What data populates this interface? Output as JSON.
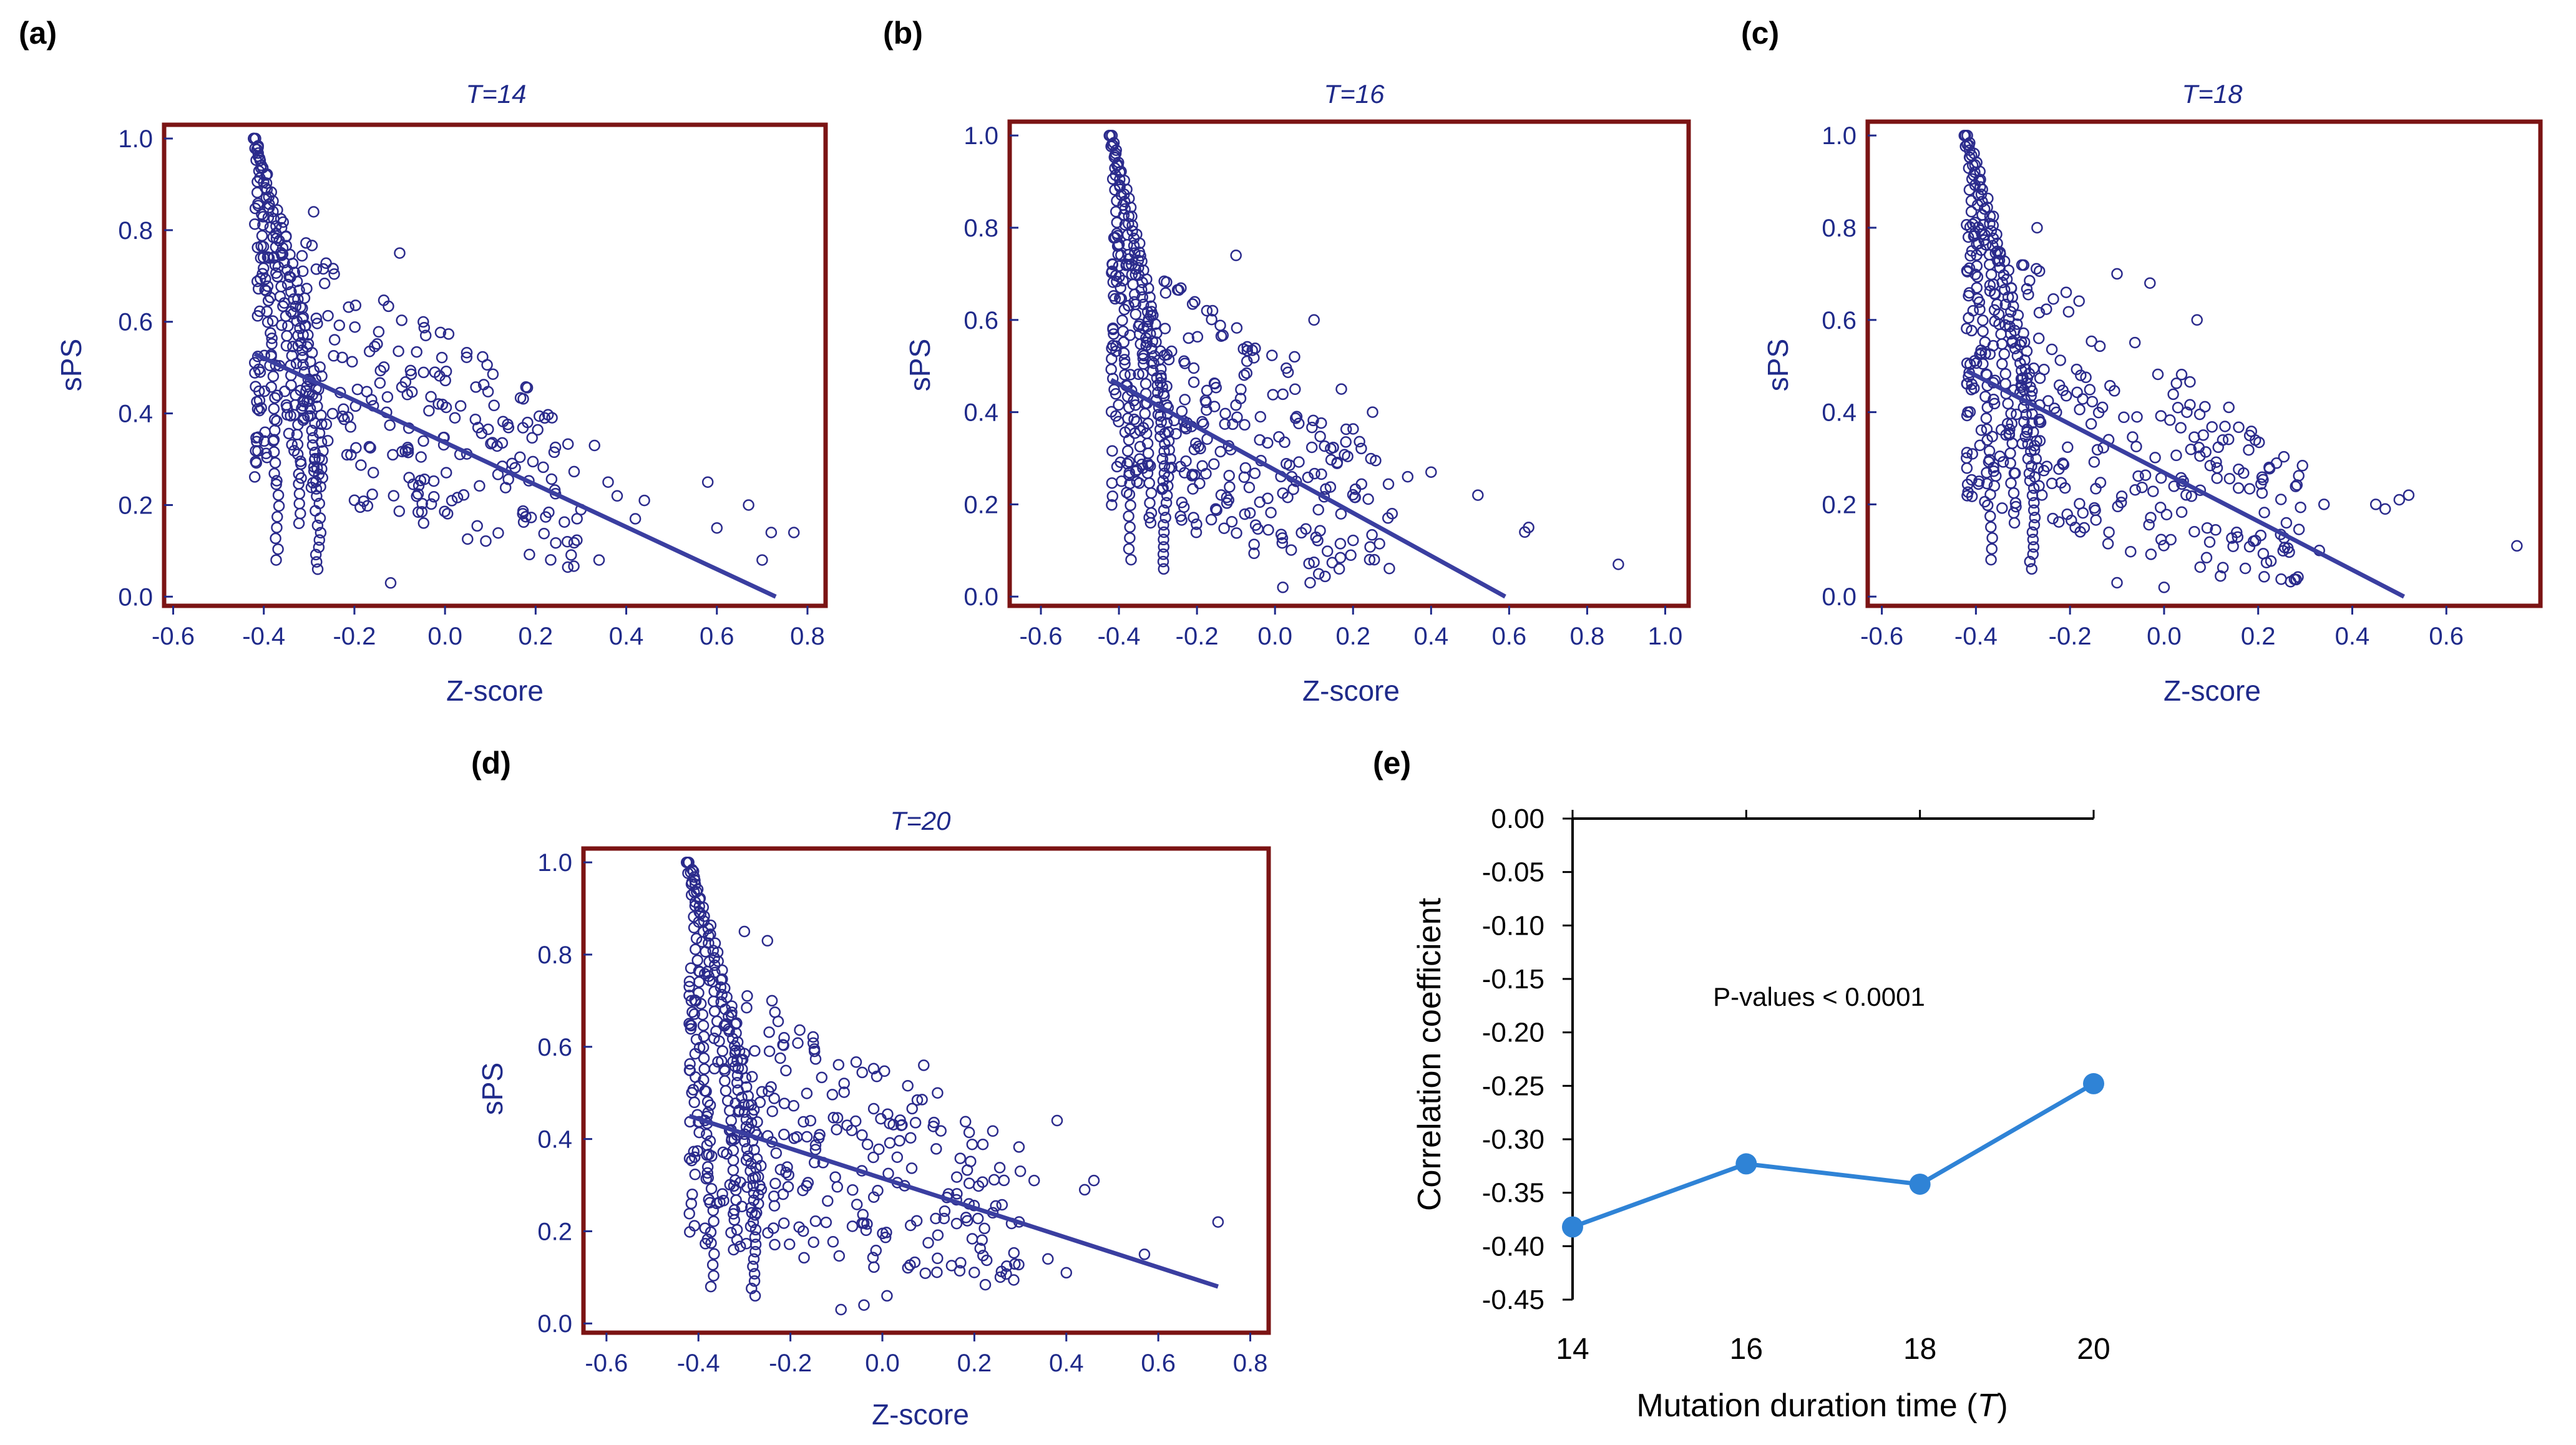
{
  "colors": {
    "frame": "#7b1414",
    "scatter": "#2b2b8c",
    "line": "#3a3ea0",
    "text_blue": "#1f2a8a",
    "axis_black": "#000000",
    "series_e": "#2f83d6"
  },
  "chart_data": [
    {
      "type": "scatter",
      "panel_label": "(a)",
      "title": "T=14",
      "xlabel": "Z-score",
      "ylabel": "sPS",
      "xlim": [
        -0.62,
        0.84
      ],
      "ylim": [
        -0.02,
        1.03
      ],
      "x_ticks": [
        "-0.6",
        "-0.4",
        "-0.2",
        "0.0",
        "0.2",
        "0.4",
        "0.6",
        "0.8"
      ],
      "y_ticks": [
        "0.0",
        "0.2",
        "0.4",
        "0.6",
        "0.8",
        "1.0"
      ],
      "fit_line": {
        "x": [
          -0.42,
          0.73
        ],
        "y": [
          0.53,
          0.0
        ]
      },
      "seed": 14,
      "extra_points": [
        [
          0.58,
          0.25
        ],
        [
          0.6,
          0.15
        ],
        [
          0.67,
          0.2
        ],
        [
          0.72,
          0.14
        ],
        [
          0.77,
          0.14
        ],
        [
          0.7,
          0.08
        ],
        [
          0.44,
          0.21
        ],
        [
          0.38,
          0.22
        ],
        [
          0.36,
          0.25
        ],
        [
          0.33,
          0.33
        ],
        [
          0.42,
          0.17
        ],
        [
          0.34,
          0.08
        ],
        [
          0.3,
          0.19
        ],
        [
          -0.12,
          0.03
        ],
        [
          -0.29,
          0.84
        ],
        [
          -0.1,
          0.75
        ],
        [
          0.22,
          0.39
        ],
        [
          0.27,
          0.12
        ]
      ]
    },
    {
      "type": "scatter",
      "panel_label": "(b)",
      "title": "T=16",
      "xlabel": "Z-score",
      "ylabel": "sPS",
      "xlim": [
        -0.68,
        1.06
      ],
      "ylim": [
        -0.02,
        1.03
      ],
      "x_ticks": [
        "-0.6",
        "-0.4",
        "-0.2",
        "0.0",
        "0.2",
        "0.4",
        "0.6",
        "0.8",
        "1.0"
      ],
      "y_ticks": [
        "0.0",
        "0.2",
        "0.4",
        "0.6",
        "0.8",
        "1.0"
      ],
      "fit_line": {
        "x": [
          -0.42,
          0.59
        ],
        "y": [
          0.47,
          0.0
        ]
      },
      "seed": 16,
      "extra_points": [
        [
          0.88,
          0.07
        ],
        [
          0.65,
          0.15
        ],
        [
          0.64,
          0.14
        ],
        [
          0.52,
          0.22
        ],
        [
          0.4,
          0.27
        ],
        [
          0.34,
          0.26
        ],
        [
          0.25,
          0.4
        ],
        [
          0.3,
          0.18
        ],
        [
          0.17,
          0.45
        ],
        [
          0.1,
          0.6
        ],
        [
          0.05,
          0.52
        ],
        [
          -0.1,
          0.74
        ],
        [
          -0.16,
          0.62
        ],
        [
          0.02,
          0.02
        ],
        [
          0.09,
          0.03
        ]
      ]
    },
    {
      "type": "scatter",
      "panel_label": "(c)",
      "title": "T=18",
      "xlabel": "Z-score",
      "ylabel": "sPS",
      "xlim": [
        -0.63,
        0.8
      ],
      "ylim": [
        -0.02,
        1.03
      ],
      "x_ticks": [
        "-0.6",
        "-0.4",
        "-0.2",
        "0.0",
        "0.2",
        "0.4",
        "0.6"
      ],
      "y_ticks": [
        "0.0",
        "0.2",
        "0.4",
        "0.6",
        "0.8",
        "1.0"
      ],
      "fit_line": {
        "x": [
          -0.42,
          0.51
        ],
        "y": [
          0.49,
          0.0
        ]
      },
      "seed": 18,
      "extra_points": [
        [
          0.75,
          0.11
        ],
        [
          0.52,
          0.22
        ],
        [
          0.5,
          0.21
        ],
        [
          0.47,
          0.19
        ],
        [
          0.45,
          0.2
        ],
        [
          0.33,
          0.1
        ],
        [
          0.34,
          0.2
        ],
        [
          0.26,
          0.16
        ],
        [
          0.19,
          0.12
        ],
        [
          -0.27,
          0.8
        ],
        [
          -0.1,
          0.7
        ],
        [
          0.07,
          0.6
        ],
        [
          -0.03,
          0.68
        ],
        [
          0.0,
          0.02
        ],
        [
          -0.1,
          0.03
        ]
      ]
    },
    {
      "type": "scatter",
      "panel_label": "(d)",
      "title": "T=20",
      "xlabel": "Z-score",
      "ylabel": "sPS",
      "xlim": [
        -0.65,
        0.84
      ],
      "ylim": [
        -0.02,
        1.03
      ],
      "x_ticks": [
        "-0.6",
        "-0.4",
        "-0.2",
        "0.0",
        "0.2",
        "0.4",
        "0.6",
        "0.8"
      ],
      "y_ticks": [
        "0.0",
        "0.2",
        "0.4",
        "0.6",
        "0.8",
        "1.0"
      ],
      "fit_line": {
        "x": [
          -0.42,
          0.73
        ],
        "y": [
          0.45,
          0.08
        ]
      },
      "seed": 20,
      "extra_points": [
        [
          0.73,
          0.22
        ],
        [
          0.57,
          0.15
        ],
        [
          0.46,
          0.31
        ],
        [
          0.44,
          0.29
        ],
        [
          0.38,
          0.44
        ],
        [
          0.36,
          0.14
        ],
        [
          0.4,
          0.11
        ],
        [
          0.33,
          0.31
        ],
        [
          0.3,
          0.33
        ],
        [
          0.12,
          0.5
        ],
        [
          0.09,
          0.56
        ],
        [
          0.01,
          0.06
        ],
        [
          -0.04,
          0.04
        ],
        [
          -0.09,
          0.03
        ],
        [
          -0.24,
          0.7
        ],
        [
          -0.3,
          0.85
        ],
        [
          -0.25,
          0.83
        ],
        [
          0.24,
          0.24
        ]
      ]
    },
    {
      "type": "line",
      "panel_label": "(e)",
      "title": "",
      "xlabel_prefix": "Mutation duration time (",
      "xlabel_var": "T",
      "xlabel_suffix": ")",
      "ylabel": "Correlation coefficient",
      "annotation": "P-values < 0.0001",
      "ylim": [
        -0.45,
        0.0
      ],
      "y_ticks": [
        "0.00",
        "-0.05",
        "-0.10",
        "-0.15",
        "-0.20",
        "-0.25",
        "-0.30",
        "-0.35",
        "-0.40",
        "-0.45"
      ],
      "categories": [
        "14",
        "16",
        "18",
        "20"
      ],
      "values": [
        -0.382,
        -0.323,
        -0.342,
        -0.248
      ]
    }
  ]
}
